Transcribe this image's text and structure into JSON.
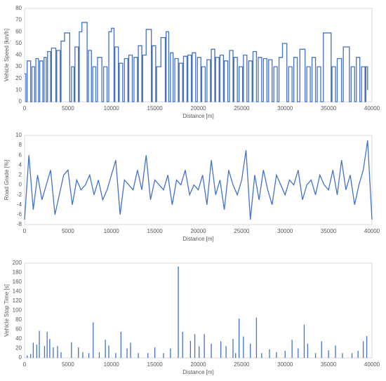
{
  "chart_data": [
    {
      "type": "line",
      "step": true,
      "color": "#4472c4",
      "xlabel": "Distance [m]",
      "ylabel": "Vehicle Speed [km/h]",
      "xlim": [
        0,
        40000
      ],
      "xticks": [
        0,
        5000,
        10000,
        15000,
        20000,
        25000,
        30000,
        35000,
        40000
      ],
      "ylim": [
        0,
        80
      ],
      "yticks": [
        0,
        10,
        20,
        30,
        40,
        50,
        60,
        70,
        80
      ],
      "grid": false,
      "x": [
        0,
        150,
        300,
        700,
        850,
        1150,
        1300,
        1600,
        1750,
        2100,
        2250,
        2500,
        2650,
        3000,
        3100,
        3600,
        3700,
        4100,
        4200,
        4600,
        5200,
        5400,
        5700,
        5800,
        6200,
        6300,
        6600,
        7200,
        7350,
        7700,
        7850,
        8200,
        8400,
        8900,
        9100,
        9500,
        9700,
        10000,
        10300,
        10400,
        10800,
        10900,
        11300,
        11500,
        11900,
        12000,
        12400,
        12600,
        13000,
        13100,
        13500,
        13600,
        14000,
        14600,
        14700,
        15100,
        15200,
        15700,
        16200,
        16300,
        16600,
        16800,
        17100,
        17300,
        17700,
        17800,
        18200,
        18300,
        18700,
        18800,
        19200,
        19300,
        19700,
        19900,
        20300,
        20400,
        20800,
        21000,
        21400,
        21500,
        21900,
        22000,
        22400,
        22500,
        22900,
        23000,
        23400,
        23600,
        24000,
        24100,
        24500,
        24700,
        25100,
        25200,
        25600,
        25800,
        26200,
        26300,
        26700,
        26900,
        27300,
        27500,
        27900,
        28100,
        28500,
        28700,
        29100,
        29300,
        29700,
        30200,
        30400,
        30800,
        31000,
        31400,
        31700,
        32300,
        32500,
        32900,
        33100,
        33500,
        33700,
        34100,
        34400,
        35300,
        35400,
        35800,
        36000,
        36500,
        36700,
        37400,
        37600,
        38000,
        38200,
        38600,
        38800,
        39200,
        39300,
        39500
      ],
      "values": [
        24,
        0,
        35,
        0,
        30,
        0,
        37,
        0,
        35,
        0,
        38,
        0,
        43,
        0,
        46,
        0,
        44,
        0,
        52,
        59,
        0,
        30,
        0,
        47,
        0,
        60,
        68,
        0,
        44,
        0,
        30,
        0,
        38,
        0,
        30,
        0,
        60,
        63,
        0,
        47,
        0,
        33,
        0,
        37,
        0,
        40,
        0,
        38,
        0,
        48,
        0,
        40,
        62,
        0,
        48,
        0,
        30,
        55,
        0,
        60,
        0,
        42,
        0,
        37,
        0,
        33,
        0,
        39,
        0,
        40,
        0,
        42,
        0,
        38,
        0,
        30,
        0,
        36,
        0,
        45,
        0,
        38,
        0,
        40,
        0,
        35,
        0,
        44,
        0,
        38,
        0,
        30,
        0,
        40,
        0,
        35,
        0,
        43,
        0,
        38,
        0,
        37,
        0,
        36,
        0,
        30,
        0,
        38,
        50,
        0,
        30,
        0,
        38,
        0,
        45,
        0,
        30,
        0,
        38,
        0,
        30,
        0,
        59,
        0,
        30,
        0,
        37,
        0,
        47,
        0,
        30,
        0,
        38,
        0,
        30,
        0,
        30,
        10
      ]
    },
    {
      "type": "line",
      "step": false,
      "color": "#4472c4",
      "xlabel": "Distance [m]",
      "ylabel": "Road Grade [%]",
      "xlim": [
        0,
        40000
      ],
      "xticks": [
        0,
        5000,
        10000,
        15000,
        20000,
        25000,
        30000,
        35000,
        40000
      ],
      "ylim": [
        -8,
        10
      ],
      "yticks": [
        -8,
        -6,
        -4,
        -2,
        0,
        2,
        4,
        6,
        8,
        10
      ],
      "grid": false,
      "x": [
        0,
        500,
        1000,
        1500,
        2000,
        2500,
        3000,
        3500,
        4000,
        4500,
        5000,
        5500,
        6000,
        6500,
        7000,
        7500,
        8000,
        8500,
        9000,
        9500,
        10000,
        10500,
        11000,
        11500,
        12000,
        12500,
        13000,
        13500,
        14000,
        14500,
        15000,
        15500,
        16000,
        16500,
        17000,
        17500,
        18000,
        18500,
        19000,
        19500,
        20000,
        20500,
        21000,
        21500,
        22000,
        22500,
        23000,
        23500,
        24000,
        24500,
        25000,
        25500,
        26000,
        26500,
        27000,
        27500,
        28000,
        28500,
        29000,
        29500,
        30000,
        30500,
        31000,
        31500,
        32000,
        32500,
        33000,
        33500,
        34000,
        34500,
        35000,
        35500,
        36000,
        36500,
        37000,
        37500,
        38000,
        38500,
        39000,
        39500,
        40000
      ],
      "values": [
        -7,
        6,
        -5,
        2,
        -3,
        0,
        3,
        -6,
        -2,
        2,
        3,
        -4,
        1,
        -1,
        0,
        2,
        -2,
        1,
        -3,
        -1,
        2,
        5,
        -6,
        1,
        0,
        -1,
        3,
        -1,
        6,
        -3,
        1,
        0,
        -1,
        2,
        -4,
        1,
        0,
        3,
        -2,
        0,
        -1,
        2,
        -4,
        5,
        -2,
        1,
        -5,
        3,
        0,
        -2,
        1,
        7,
        -7,
        2,
        -3,
        3,
        -1,
        -4,
        2,
        0,
        -2,
        1,
        0,
        3,
        -3,
        0,
        1,
        -2,
        2,
        0,
        -1,
        3,
        -2,
        5,
        -1,
        2,
        -4,
        0,
        3,
        9,
        -7
      ]
    },
    {
      "type": "spike",
      "color": "#4472c4",
      "xlabel": "Distance [m]",
      "ylabel": "Vehicle Stop Time [s]",
      "xlim": [
        0,
        40000
      ],
      "xticks": [
        0,
        5000,
        10000,
        15000,
        20000,
        25000,
        30000,
        35000,
        40000
      ],
      "ylim": [
        0,
        200
      ],
      "yticks": [
        0,
        20,
        40,
        60,
        80,
        100,
        120,
        140,
        160,
        180,
        200
      ],
      "grid": false,
      "x": [
        300,
        700,
        1000,
        1400,
        1700,
        2300,
        2600,
        2900,
        3300,
        3800,
        4200,
        5400,
        6200,
        6700,
        7400,
        7900,
        8600,
        9300,
        9700,
        10500,
        11100,
        11800,
        12200,
        13100,
        14200,
        15000,
        16000,
        16800,
        17700,
        18200,
        19100,
        19600,
        20100,
        20700,
        21500,
        22600,
        23200,
        24000,
        24300,
        24700,
        25200,
        26000,
        26700,
        27300,
        28200,
        29000,
        30000,
        30800,
        31500,
        32200,
        32600,
        33500,
        34200,
        35000,
        35800,
        36600,
        37700,
        38400,
        39000,
        39400
      ],
      "values": [
        5,
        8,
        32,
        28,
        57,
        25,
        55,
        40,
        22,
        25,
        12,
        33,
        22,
        12,
        10,
        75,
        12,
        38,
        26,
        10,
        55,
        20,
        32,
        10,
        10,
        22,
        10,
        20,
        193,
        55,
        36,
        50,
        24,
        50,
        30,
        35,
        25,
        40,
        10,
        83,
        45,
        30,
        85,
        10,
        18,
        12,
        15,
        38,
        20,
        70,
        30,
        10,
        35,
        16,
        26,
        10,
        10,
        15,
        35,
        46
      ]
    }
  ]
}
